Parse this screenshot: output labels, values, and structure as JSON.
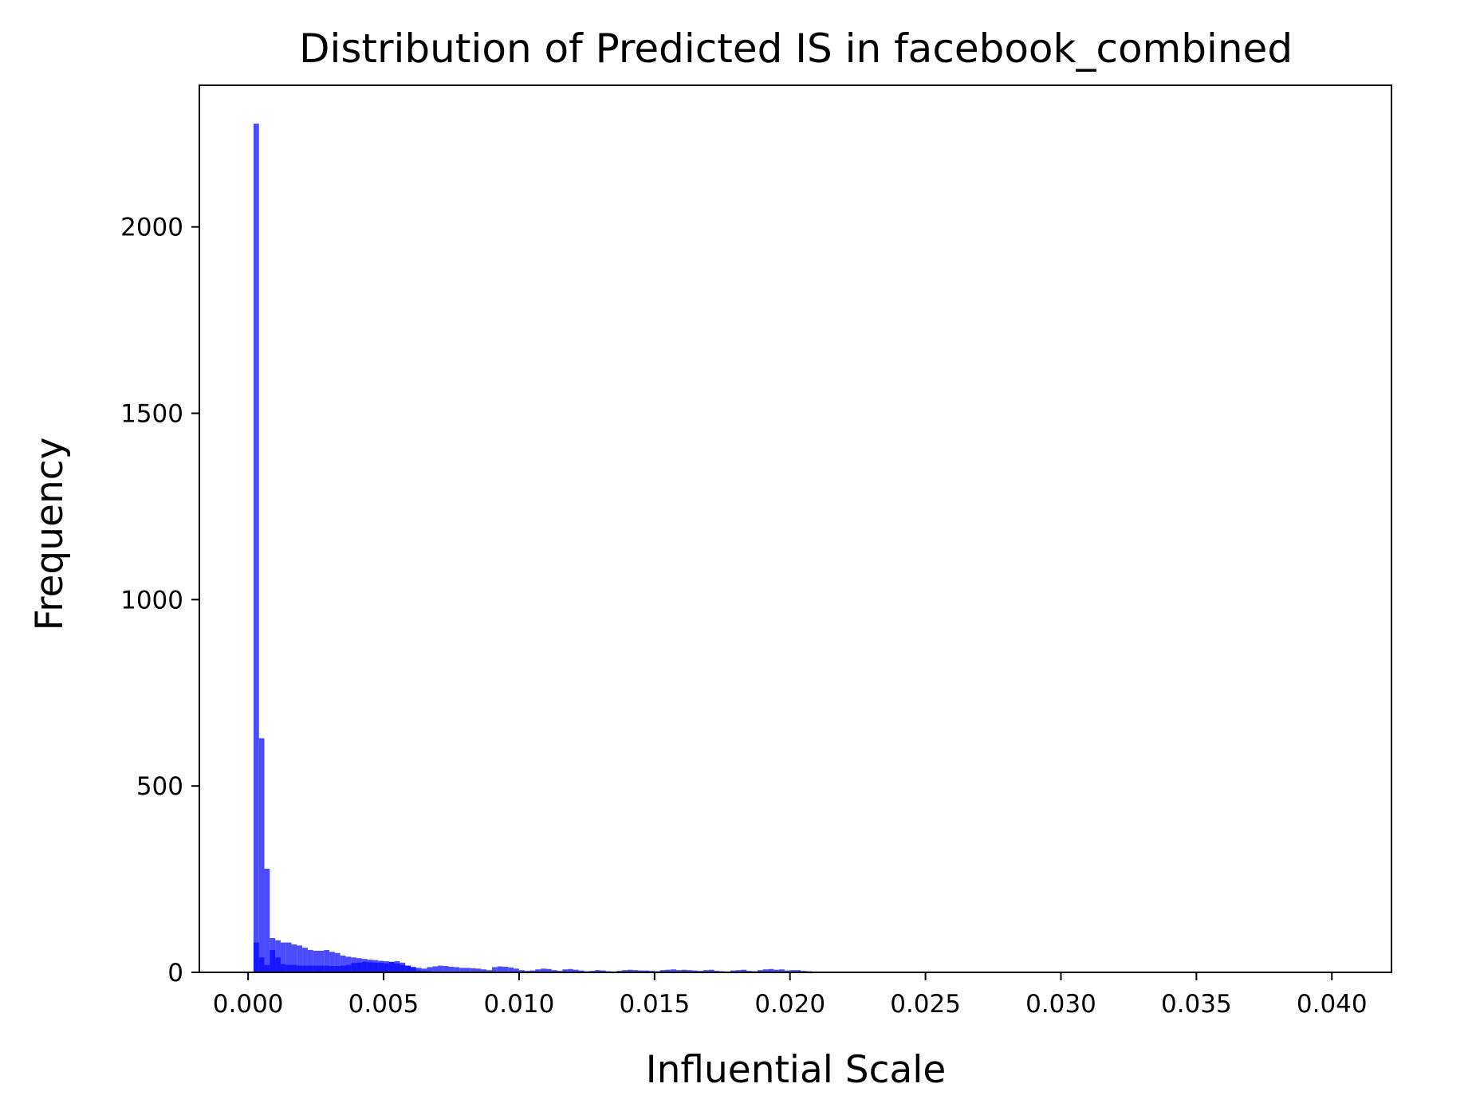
{
  "chart_data": {
    "type": "bar",
    "title": "Distribution of Predicted IS in facebook_combined",
    "xlabel": "Influential Scale",
    "ylabel": "Frequency",
    "xlim": [
      -0.0018,
      0.0422
    ],
    "ylim": [
      0,
      2380
    ],
    "x_ticks": [
      {
        "value": 0.0,
        "label": "0.000"
      },
      {
        "value": 0.005,
        "label": "0.005"
      },
      {
        "value": 0.01,
        "label": "0.010"
      },
      {
        "value": 0.015,
        "label": "0.015"
      },
      {
        "value": 0.02,
        "label": "0.020"
      },
      {
        "value": 0.025,
        "label": "0.025"
      },
      {
        "value": 0.03,
        "label": "0.030"
      },
      {
        "value": 0.035,
        "label": "0.035"
      },
      {
        "value": 0.04,
        "label": "0.040"
      }
    ],
    "y_ticks": [
      {
        "value": 0,
        "label": "0"
      },
      {
        "value": 500,
        "label": "500"
      },
      {
        "value": 1000,
        "label": "1000"
      },
      {
        "value": 1500,
        "label": "1500"
      },
      {
        "value": 2000,
        "label": "2000"
      }
    ],
    "grid": false,
    "series": [
      {
        "color": "#0000ff",
        "opacity": 0.7,
        "bin_width": 0.0002,
        "bins_start": [
          0.0002,
          0.0004,
          0.0006,
          0.0008,
          0.001,
          0.0012,
          0.0014,
          0.0016,
          0.0018,
          0.002,
          0.0022,
          0.0024,
          0.0026,
          0.0028,
          0.003,
          0.0032,
          0.0034,
          0.0036,
          0.0038,
          0.004,
          0.0042,
          0.0044,
          0.0046,
          0.0048,
          0.005,
          0.0052,
          0.0054,
          0.0056,
          0.0058,
          0.006,
          0.0062,
          0.0064,
          0.0066,
          0.0068,
          0.007,
          0.0072,
          0.0074,
          0.0076,
          0.0078,
          0.008,
          0.0082,
          0.0084,
          0.0086,
          0.0088,
          0.009,
          0.0092,
          0.0094,
          0.0096,
          0.0098,
          0.01,
          0.0102,
          0.0104,
          0.0106,
          0.0108,
          0.011,
          0.0112,
          0.0114,
          0.0116,
          0.0118,
          0.012,
          0.0122,
          0.0124,
          0.0126,
          0.0128,
          0.013,
          0.0132,
          0.0134,
          0.0136,
          0.0138,
          0.014,
          0.0142,
          0.0144,
          0.0146,
          0.0148,
          0.015,
          0.0152,
          0.0154,
          0.0156,
          0.0158,
          0.016,
          0.0162,
          0.0164,
          0.0166,
          0.0168,
          0.017,
          0.0172,
          0.0174,
          0.0176,
          0.0178,
          0.018,
          0.0182,
          0.0184,
          0.0186,
          0.0188,
          0.019,
          0.0192,
          0.0194,
          0.0196,
          0.0198,
          0.02,
          0.0202,
          0.0204,
          0.0206,
          0.0208,
          0.021,
          0.0212,
          0.0214,
          0.0216,
          0.0218,
          0.022,
          0.0222,
          0.0224,
          0.0226,
          0.0228,
          0.023,
          0.0232,
          0.0234,
          0.0236,
          0.0238,
          0.024,
          0.0242,
          0.0244,
          0.0246,
          0.0248,
          0.025,
          0.0252,
          0.0254,
          0.0256
        ],
        "values": [
          2277,
          628,
          278,
          92,
          86,
          80,
          80,
          75,
          72,
          66,
          60,
          58,
          58,
          60,
          55,
          52,
          45,
          42,
          40,
          38,
          36,
          34,
          33,
          31,
          30,
          28,
          24,
          20,
          18,
          15,
          12,
          10,
          14,
          16,
          18,
          17,
          15,
          14,
          12,
          12,
          11,
          10,
          8,
          6,
          14,
          16,
          15,
          13,
          10,
          6,
          4,
          5,
          8,
          10,
          9,
          6,
          4,
          8,
          9,
          7,
          5,
          3,
          4,
          6,
          5,
          3,
          2,
          4,
          6,
          7,
          6,
          5,
          5,
          4,
          3,
          6,
          7,
          8,
          6,
          7,
          6,
          5,
          4,
          6,
          7,
          4,
          3,
          2,
          5,
          6,
          7,
          4,
          3,
          6,
          8,
          9,
          7,
          8,
          5,
          6,
          6,
          4,
          3,
          2,
          2,
          1,
          1,
          0,
          0,
          1,
          2,
          1,
          0,
          1,
          0,
          0,
          0,
          0,
          1,
          0,
          0,
          0,
          0,
          0,
          0,
          1,
          2,
          1
        ]
      },
      {
        "color": "#0000ff",
        "opacity": 0.7,
        "bin_width": 0.0002,
        "bins_start": [
          0.0002,
          0.0004,
          0.0006,
          0.0008,
          0.001,
          0.0012,
          0.0014,
          0.0016,
          0.0018,
          0.002,
          0.0022,
          0.0024,
          0.0026,
          0.0028,
          0.003,
          0.0032,
          0.0034,
          0.0036,
          0.0038,
          0.004,
          0.0042,
          0.0044,
          0.0046,
          0.0048,
          0.005,
          0.0052,
          0.0054,
          0.0056,
          0.0058,
          0.006,
          0.0062,
          0.0064,
          0.0066,
          0.0068
        ],
        "values": [
          80,
          40,
          20,
          60,
          40,
          22,
          20,
          20,
          18,
          18,
          18,
          18,
          18,
          18,
          17,
          17,
          18,
          20,
          25,
          26,
          28,
          27,
          26,
          26,
          24,
          28,
          30,
          26,
          18,
          12,
          5,
          4,
          3,
          2
        ]
      }
    ]
  }
}
